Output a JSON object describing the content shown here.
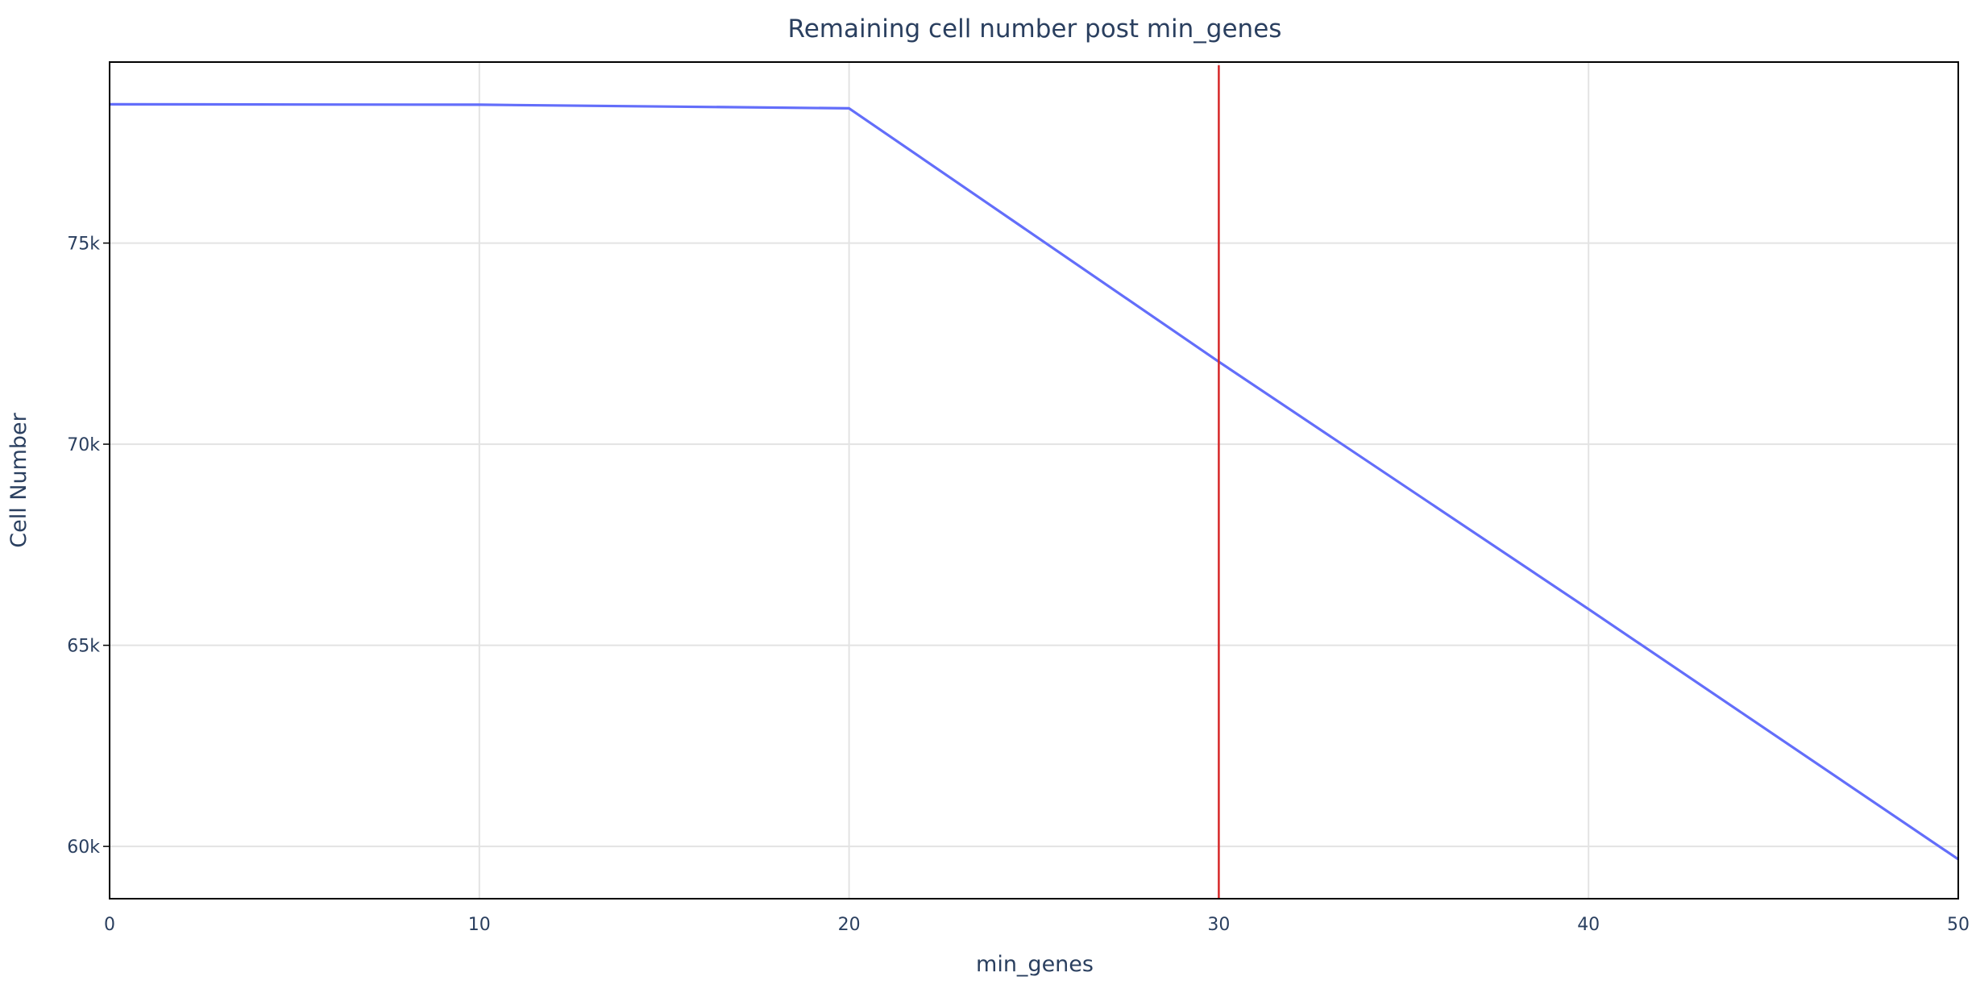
{
  "chart_data": {
    "type": "line",
    "title": "Remaining cell number post min_genes",
    "xlabel": "min_genes",
    "ylabel": "Cell Number",
    "xlim": [
      0,
      50
    ],
    "ylim": [
      58700,
      79500
    ],
    "x_ticks": [
      0,
      10,
      20,
      30,
      40,
      50
    ],
    "x_tick_labels": [
      "0",
      "10",
      "20",
      "30",
      "40",
      "50"
    ],
    "y_ticks": [
      60000,
      65000,
      70000,
      75000
    ],
    "y_tick_labels": [
      "60k",
      "65k",
      "70k",
      "75k"
    ],
    "grid": true,
    "series": [
      {
        "color": "#636efa",
        "x": [
          0,
          10,
          20,
          30,
          40,
          50
        ],
        "y": [
          78450,
          78440,
          78350,
          72050,
          65900,
          59680
        ]
      }
    ],
    "threshold_line": {
      "x": 30,
      "color": "#d62728"
    }
  }
}
